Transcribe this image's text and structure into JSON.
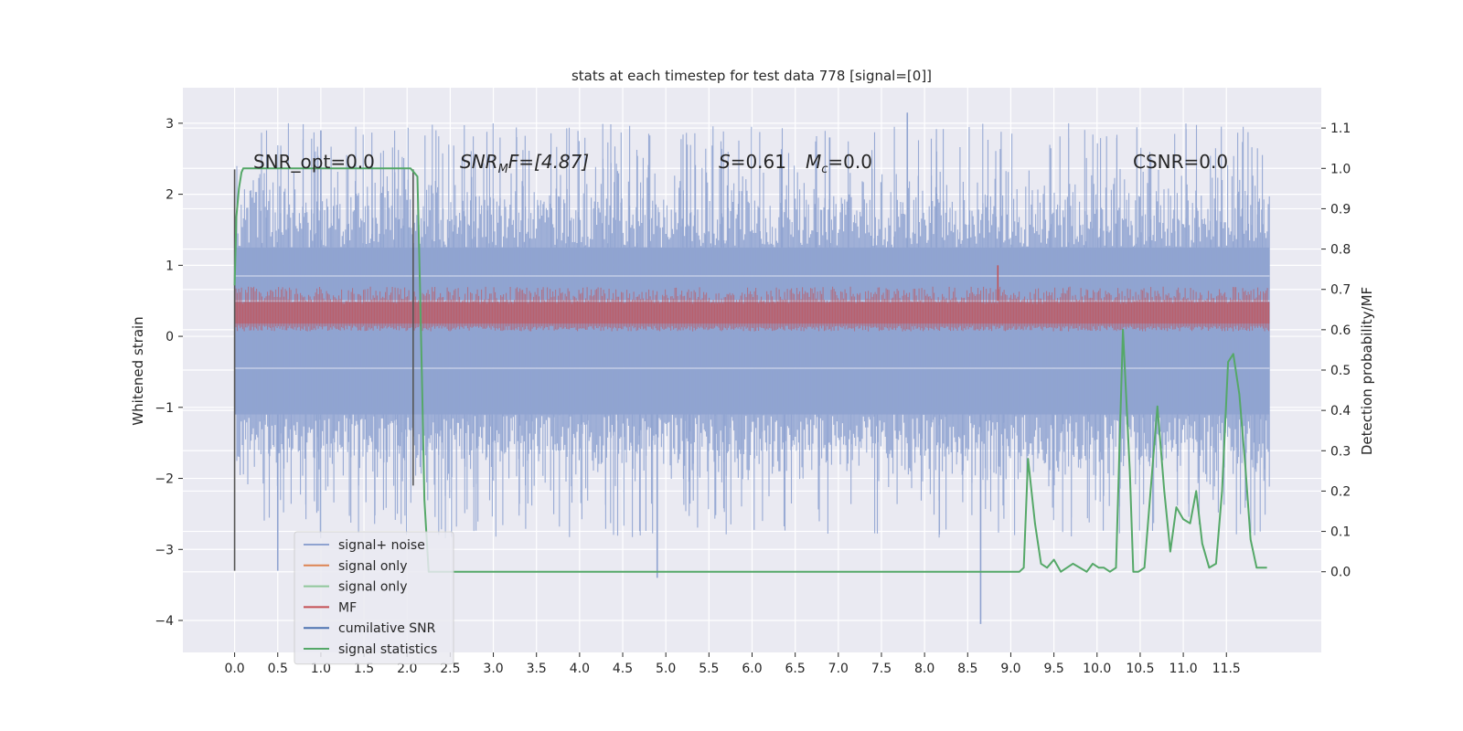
{
  "chart_data": {
    "type": "line",
    "title": "stats at each timestep for test data 778 [signal=[0]]",
    "xlabel": "",
    "ylabel": "Whitened strain",
    "ylabel_right": "Detection probability/MF",
    "xlim": [
      -0.6,
      12.6
    ],
    "ylim": [
      -4.45,
      3.5
    ],
    "ylim_right": [
      -0.2,
      1.2
    ],
    "xticks": [
      "0.0",
      "0.5",
      "1.0",
      "1.5",
      "2.0",
      "2.5",
      "3.0",
      "3.5",
      "4.0",
      "4.5",
      "5.0",
      "5.5",
      "6.0",
      "6.5",
      "7.0",
      "7.5",
      "8.0",
      "8.5",
      "9.0",
      "9.5",
      "10.0",
      "10.5",
      "11.0",
      "11.5"
    ],
    "yticks_left": [
      -4,
      -3,
      -2,
      -1,
      0,
      1,
      2,
      3
    ],
    "yticks_left_labels": [
      "−4",
      "−3",
      "−2",
      "−1",
      "0",
      "1",
      "2",
      "3"
    ],
    "yticks_right": [
      0.0,
      0.1,
      0.2,
      0.3,
      0.4,
      0.5,
      0.6,
      0.7,
      0.8,
      0.9,
      1.0,
      1.1
    ],
    "yticks_right_labels": [
      "0.0",
      "0.1",
      "0.2",
      "0.3",
      "0.4",
      "0.5",
      "0.6",
      "0.7",
      "0.8",
      "0.9",
      "1.0",
      "1.1"
    ],
    "grid": true,
    "legend_placement": "lower-left",
    "annotations": {
      "snr_opt": "SNR_opt=0.0",
      "snr_mf_base": "SNR",
      "snr_mf_sub": "M",
      "snr_mf_rest": "F=[4.87]",
      "s_base": "S",
      "s_rest": "=0.61",
      "mc_base": "M",
      "mc_sub": "c",
      "mc_rest": "=0.0",
      "csnr": "CSNR=0.0"
    },
    "legend": [
      {
        "label": "signal+ noise",
        "color": "#8fa3d0"
      },
      {
        "label": "signal only",
        "color": "#dd8452"
      },
      {
        "label": "signal only",
        "color": "#8fc79a"
      },
      {
        "label": "MF",
        "color": "#c44e52"
      },
      {
        "label": "cumilative SNR",
        "color": "#4c72b0"
      },
      {
        "label": "signal statistics",
        "color": "#55a868"
      }
    ],
    "series": [
      {
        "name": "signal+ noise",
        "color": "#8fa3d0",
        "x_range": [
          0.0,
          12.0
        ],
        "core_band": [
          -1.1,
          1.25
        ],
        "envelope_band": [
          -2.3,
          2.5
        ],
        "extremes": [
          {
            "x": 0.5,
            "y": -3.3
          },
          {
            "x": 4.9,
            "y": -3.4
          },
          {
            "x": 7.8,
            "y": 3.15
          },
          {
            "x": 8.65,
            "y": -4.05
          },
          {
            "x": 1.0,
            "y": 2.9
          },
          {
            "x": 6.9,
            "y": 2.8
          }
        ]
      },
      {
        "name": "MF",
        "color": "#c44e52",
        "x_range": [
          0.0,
          12.0
        ],
        "band": [
          0.1,
          0.6
        ],
        "spike": {
          "x": 8.85,
          "y": 1.0
        }
      },
      {
        "name": "signal statistics",
        "color": "#55a868",
        "axis": "right",
        "x": [
          0.0,
          0.02,
          0.05,
          0.08,
          0.1,
          0.15,
          0.3,
          0.5,
          1.0,
          1.5,
          2.0,
          2.04,
          2.08,
          2.12,
          2.15,
          2.18,
          2.2,
          2.25,
          2.3,
          2.5,
          3.0,
          5.0,
          7.5,
          8.5,
          9.0,
          9.1,
          9.15,
          9.2,
          9.28,
          9.35,
          9.42,
          9.5,
          9.58,
          9.65,
          9.72,
          9.8,
          9.88,
          9.95,
          10.02,
          10.08,
          10.15,
          10.22,
          10.3,
          10.38,
          10.42,
          10.48,
          10.55,
          10.62,
          10.7,
          10.78,
          10.85,
          10.92,
          11.0,
          11.08,
          11.15,
          11.22,
          11.3,
          11.38,
          11.45,
          11.52,
          11.58,
          11.65,
          11.72,
          11.78,
          11.85,
          11.92,
          11.97
        ],
        "y": [
          0.71,
          0.88,
          0.95,
          0.99,
          1.0,
          1.0,
          1.0,
          1.0,
          1.0,
          1.0,
          1.0,
          1.0,
          0.99,
          0.98,
          0.7,
          0.4,
          0.18,
          0.0,
          0.0,
          0.0,
          0.0,
          0.0,
          0.0,
          0.0,
          0.0,
          0.0,
          0.01,
          0.28,
          0.12,
          0.02,
          0.01,
          0.03,
          0.0,
          0.01,
          0.02,
          0.01,
          0.0,
          0.02,
          0.01,
          0.01,
          0.0,
          0.01,
          0.6,
          0.25,
          0.0,
          0.0,
          0.01,
          0.2,
          0.41,
          0.2,
          0.05,
          0.16,
          0.13,
          0.12,
          0.2,
          0.07,
          0.01,
          0.02,
          0.2,
          0.52,
          0.54,
          0.44,
          0.26,
          0.08,
          0.01,
          0.01,
          0.01
        ]
      },
      {
        "name": "marker lines",
        "color": "#555555",
        "lines": [
          {
            "x": 0.0,
            "y_left": [
              -3.3,
              2.35
            ]
          },
          {
            "x": 2.07,
            "y_left": [
              -2.1,
              2.35
            ]
          }
        ]
      }
    ]
  }
}
